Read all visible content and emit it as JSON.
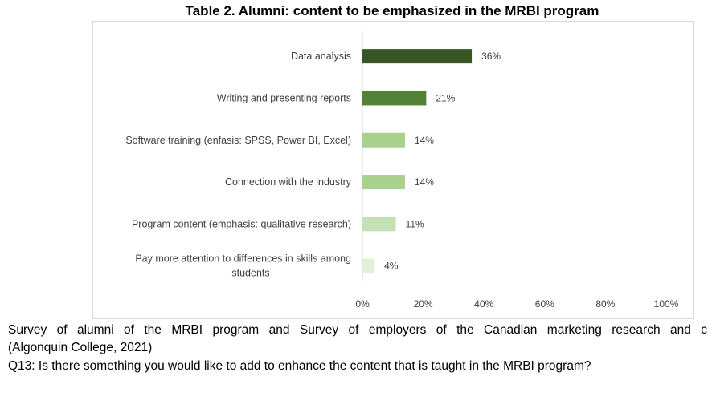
{
  "title": "Table 2. Alumni: content to be emphasized in the MRBI program",
  "chart_data": {
    "type": "bar",
    "orientation": "horizontal",
    "categories": [
      "Data analysis",
      "Writing and presenting reports",
      "Software training (enfasis: SPSS, Power BI, Excel)",
      "Connection with the industry",
      "Program content (emphasis: qualitative research)",
      "Pay more attention to differences in skills among students"
    ],
    "category_lines": [
      [
        "Data analysis"
      ],
      [
        "Writing and presenting reports"
      ],
      [
        "Software training (enfasis: SPSS, Power BI, Excel)"
      ],
      [
        "Connection with the industry"
      ],
      [
        "Program content (emphasis: qualitative research)"
      ],
      [
        "Pay more attention to differences in skills among",
        "students"
      ]
    ],
    "values": [
      36,
      21,
      14,
      14,
      11,
      4
    ],
    "value_labels": [
      "36%",
      "21%",
      "14%",
      "14%",
      "11%",
      "4%"
    ],
    "bar_colors": [
      "#375623",
      "#548235",
      "#a9d18e",
      "#a9d18e",
      "#c5e0b4",
      "#e2f0d9"
    ],
    "xlim": [
      0,
      100
    ],
    "x_ticks": [
      0,
      20,
      40,
      60,
      80,
      100
    ],
    "x_tick_labels": [
      "0%",
      "20%",
      "40%",
      "60%",
      "80%",
      "100%"
    ],
    "grid": false,
    "legend": "none"
  },
  "caption": {
    "line1": "Survey of alumni of the MRBI program and Survey of employers of the Canadian marketing research and c",
    "line2": "(Algonquin College, 2021)",
    "line3": "Q13: Is there something you would like to add to enhance the content that is taught in the MRBI program?"
  }
}
